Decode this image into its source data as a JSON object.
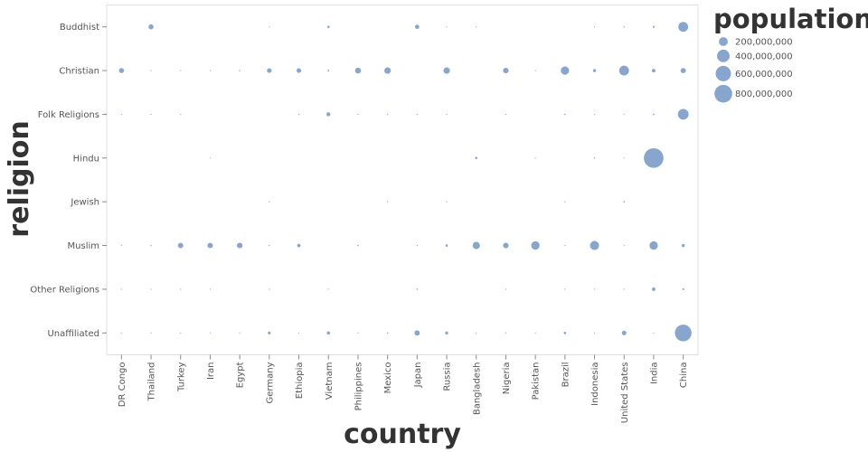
{
  "chart_data": {
    "type": "scatter",
    "xlabel": "country",
    "ylabel": "religion",
    "x_categories": [
      "DR Congo",
      "Thailand",
      "Turkey",
      "Iran",
      "Egypt",
      "Germany",
      "Ethiopia",
      "Vietnam",
      "Philippines",
      "Mexico",
      "Japan",
      "Russia",
      "Bangladesh",
      "Nigeria",
      "Pakistan",
      "Brazil",
      "Indonesia",
      "United States",
      "India",
      "China"
    ],
    "y_categories": [
      "Buddhist",
      "Christian",
      "Folk Religions",
      "Hindu",
      "Jewish",
      "Muslim",
      "Other Religions",
      "Unaffiliated"
    ],
    "size_field": "population",
    "color": "#7b9cc8",
    "grid": false,
    "legend": {
      "title": "population",
      "position": "right",
      "entries": [
        {
          "label": "200,000,000",
          "value": 200000000
        },
        {
          "label": "400,000,000",
          "value": 400000000
        },
        {
          "label": "600,000,000",
          "value": 600000000
        },
        {
          "label": "800,000,000",
          "value": 800000000
        }
      ]
    },
    "points": [
      {
        "country": "Thailand",
        "religion": "Buddhist",
        "population": 64000000
      },
      {
        "country": "Vietnam",
        "religion": "Buddhist",
        "population": 14000000
      },
      {
        "country": "Japan",
        "religion": "Buddhist",
        "population": 45000000
      },
      {
        "country": "India",
        "religion": "Buddhist",
        "population": 10000000
      },
      {
        "country": "China",
        "religion": "Buddhist",
        "population": 244000000
      },
      {
        "country": "United States",
        "religion": "Buddhist",
        "population": 4000000
      },
      {
        "country": "Indonesia",
        "religion": "Buddhist",
        "population": 2000000
      },
      {
        "country": "Russia",
        "religion": "Buddhist",
        "population": 1000000
      },
      {
        "country": "Germany",
        "religion": "Buddhist",
        "population": 300000
      },
      {
        "country": "Bangladesh",
        "religion": "Buddhist",
        "population": 1000000
      },
      {
        "country": "DR Congo",
        "religion": "Christian",
        "population": 63000000
      },
      {
        "country": "Thailand",
        "religion": "Christian",
        "population": 600000
      },
      {
        "country": "Turkey",
        "religion": "Christian",
        "population": 200000
      },
      {
        "country": "Iran",
        "religion": "Christian",
        "population": 200000
      },
      {
        "country": "Egypt",
        "religion": "Christian",
        "population": 4000000
      },
      {
        "country": "Germany",
        "religion": "Christian",
        "population": 56000000
      },
      {
        "country": "Ethiopia",
        "religion": "Christian",
        "population": 52000000
      },
      {
        "country": "Vietnam",
        "religion": "Christian",
        "population": 7000000
      },
      {
        "country": "Philippines",
        "religion": "Christian",
        "population": 86000000
      },
      {
        "country": "Mexico",
        "religion": "Christian",
        "population": 107000000
      },
      {
        "country": "Russia",
        "religion": "Christian",
        "population": 105000000
      },
      {
        "country": "Nigeria",
        "religion": "Christian",
        "population": 78000000
      },
      {
        "country": "Pakistan",
        "religion": "Christian",
        "population": 3000000
      },
      {
        "country": "Brazil",
        "religion": "Christian",
        "population": 173000000
      },
      {
        "country": "Indonesia",
        "religion": "Christian",
        "population": 24000000
      },
      {
        "country": "United States",
        "religion": "Christian",
        "population": 243000000
      },
      {
        "country": "India",
        "religion": "Christian",
        "population": 31000000
      },
      {
        "country": "China",
        "religion": "Christian",
        "population": 68000000
      },
      {
        "country": "Vietnam",
        "religion": "Folk Religions",
        "population": 40000000
      },
      {
        "country": "China",
        "religion": "Folk Religions",
        "population": 294000000
      },
      {
        "country": "India",
        "religion": "Folk Religions",
        "population": 6000000
      },
      {
        "country": "Ethiopia",
        "religion": "Folk Religions",
        "population": 2000000
      },
      {
        "country": "Brazil",
        "religion": "Folk Religions",
        "population": 5000000
      },
      {
        "country": "Nigeria",
        "religion": "Folk Religions",
        "population": 2000000
      },
      {
        "country": "Philippines",
        "religion": "Folk Religions",
        "population": 1000000
      },
      {
        "country": "DR Congo",
        "religion": "Folk Religions",
        "population": 1000000
      },
      {
        "country": "Japan",
        "religion": "Folk Religions",
        "population": 500000
      },
      {
        "country": "Mexico",
        "religion": "Folk Religions",
        "population": 300000
      },
      {
        "country": "Thailand",
        "religion": "Folk Religions",
        "population": 300000
      },
      {
        "country": "Russia",
        "religion": "Folk Religions",
        "population": 300000
      },
      {
        "country": "Indonesia",
        "religion": "Folk Religions",
        "population": 300000
      },
      {
        "country": "United States",
        "religion": "Folk Religions",
        "population": 600000
      },
      {
        "country": "Turkey",
        "religion": "Folk Religions",
        "population": 100000
      },
      {
        "country": "India",
        "religion": "Hindu",
        "population": 974000000
      },
      {
        "country": "Bangladesh",
        "religion": "Hindu",
        "population": 13000000
      },
      {
        "country": "Indonesia",
        "religion": "Hindu",
        "population": 4000000
      },
      {
        "country": "Pakistan",
        "religion": "Hindu",
        "population": 3000000
      },
      {
        "country": "United States",
        "religion": "Hindu",
        "population": 2000000
      },
      {
        "country": "Iran",
        "religion": "Hindu",
        "population": 100000
      },
      {
        "country": "United States",
        "religion": "Jewish",
        "population": 6000000
      },
      {
        "country": "Russia",
        "religion": "Jewish",
        "population": 200000
      },
      {
        "country": "Germany",
        "religion": "Jewish",
        "population": 200000
      },
      {
        "country": "Brazil",
        "religion": "Jewish",
        "population": 100000
      },
      {
        "country": "Mexico",
        "religion": "Jewish",
        "population": 100000
      },
      {
        "country": "DR Congo",
        "religion": "Muslim",
        "population": 1000000
      },
      {
        "country": "Thailand",
        "religion": "Muslim",
        "population": 4000000
      },
      {
        "country": "Turkey",
        "religion": "Muslim",
        "population": 72000000
      },
      {
        "country": "Iran",
        "religion": "Muslim",
        "population": 74000000
      },
      {
        "country": "Egypt",
        "religion": "Muslim",
        "population": 80000000
      },
      {
        "country": "Germany",
        "religion": "Muslim",
        "population": 4000000
      },
      {
        "country": "Ethiopia",
        "religion": "Muslim",
        "population": 28000000
      },
      {
        "country": "Philippines",
        "religion": "Muslim",
        "population": 5000000
      },
      {
        "country": "Russia",
        "religion": "Muslim",
        "population": 14000000
      },
      {
        "country": "Bangladesh",
        "religion": "Muslim",
        "population": 134000000
      },
      {
        "country": "Nigeria",
        "religion": "Muslim",
        "population": 78000000
      },
      {
        "country": "Pakistan",
        "religion": "Muslim",
        "population": 178000000
      },
      {
        "country": "Indonesia",
        "religion": "Muslim",
        "population": 209000000
      },
      {
        "country": "United States",
        "religion": "Muslim",
        "population": 3000000
      },
      {
        "country": "India",
        "religion": "Muslim",
        "population": 177000000
      },
      {
        "country": "China",
        "religion": "Muslim",
        "population": 25000000
      },
      {
        "country": "Japan",
        "religion": "Muslim",
        "population": 200000
      },
      {
        "country": "Brazil",
        "religion": "Muslim",
        "population": 100000
      },
      {
        "country": "DR Congo",
        "religion": "Other Religions",
        "population": 100000
      },
      {
        "country": "Japan",
        "religion": "Other Religions",
        "population": 5000000
      },
      {
        "country": "India",
        "religion": "Other Religions",
        "population": 30000000
      },
      {
        "country": "China",
        "religion": "Other Religions",
        "population": 9000000
      },
      {
        "country": "United States",
        "religion": "Other Religions",
        "population": 1000000
      },
      {
        "country": "Brazil",
        "religion": "Other Religions",
        "population": 300000
      },
      {
        "country": "Thailand",
        "religion": "Other Religions",
        "population": 100000
      },
      {
        "country": "Turkey",
        "religion": "Other Religions",
        "population": 100000
      },
      {
        "country": "Iran",
        "religion": "Other Religions",
        "population": 100000
      },
      {
        "country": "Germany",
        "religion": "Other Religions",
        "population": 100000
      },
      {
        "country": "Vietnam",
        "religion": "Other Religions",
        "population": 300000
      },
      {
        "country": "Nigeria",
        "religion": "Other Religions",
        "population": 100000
      },
      {
        "country": "Indonesia",
        "religion": "Other Religions",
        "population": 100000
      },
      {
        "country": "DR Congo",
        "religion": "Unaffiliated",
        "population": 1000000
      },
      {
        "country": "Thailand",
        "religion": "Unaffiliated",
        "population": 200000
      },
      {
        "country": "Turkey",
        "religion": "Unaffiliated",
        "population": 900000
      },
      {
        "country": "Iran",
        "religion": "Unaffiliated",
        "population": 100000
      },
      {
        "country": "Egypt",
        "religion": "Unaffiliated",
        "population": 100000
      },
      {
        "country": "Germany",
        "religion": "Unaffiliated",
        "population": 20000000
      },
      {
        "country": "Ethiopia",
        "religion": "Unaffiliated",
        "population": 100000
      },
      {
        "country": "Vietnam",
        "religion": "Unaffiliated",
        "population": 26000000
      },
      {
        "country": "Philippines",
        "religion": "Unaffiliated",
        "population": 100000
      },
      {
        "country": "Mexico",
        "religion": "Unaffiliated",
        "population": 5000000
      },
      {
        "country": "Japan",
        "religion": "Unaffiliated",
        "population": 72000000
      },
      {
        "country": "Russia",
        "religion": "Unaffiliated",
        "population": 23000000
      },
      {
        "country": "Bangladesh",
        "religion": "Unaffiliated",
        "population": 100000
      },
      {
        "country": "Nigeria",
        "religion": "Unaffiliated",
        "population": 600000
      },
      {
        "country": "Pakistan",
        "religion": "Unaffiliated",
        "population": 100000
      },
      {
        "country": "Brazil",
        "religion": "Unaffiliated",
        "population": 15000000
      },
      {
        "country": "Indonesia",
        "religion": "Unaffiliated",
        "population": 100000
      },
      {
        "country": "United States",
        "religion": "Unaffiliated",
        "population": 51000000
      },
      {
        "country": "India",
        "religion": "Unaffiliated",
        "population": 1000000
      },
      {
        "country": "China",
        "religion": "Unaffiliated",
        "population": 700000000
      }
    ]
  }
}
